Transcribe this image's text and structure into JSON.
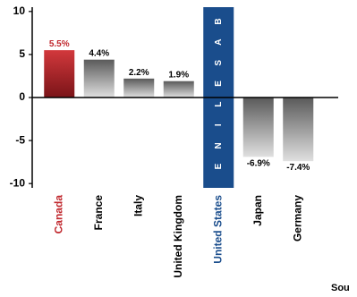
{
  "chart_data": {
    "type": "bar",
    "categories": [
      "Canada",
      "France",
      "Italy",
      "United Kingdom",
      "United States",
      "Japan",
      "Germany"
    ],
    "values": [
      5.5,
      4.4,
      2.2,
      1.9,
      null,
      -6.9,
      -7.4
    ],
    "value_labels": [
      "5.5%",
      "4.4%",
      "2.2%",
      "1.9%",
      "",
      "-6.9%",
      "-7.4%"
    ],
    "highlight_category": "Canada",
    "baseline_category": "United States",
    "baseline_label": "BASELINE",
    "yticks": [
      10,
      5,
      0,
      -5,
      -10
    ],
    "ylim": [
      -10.5,
      10.5
    ],
    "grid": false,
    "colors": {
      "highlight": "#c0272d",
      "highlight_label": "#c0272d",
      "baseline_bg": "#1a4d8c",
      "baseline_label": "#1a4d8c",
      "gray_dark": "#5a5a5a",
      "gray_light": "#e0e0e0"
    }
  },
  "footer": {
    "source_fragment": "Sou"
  }
}
